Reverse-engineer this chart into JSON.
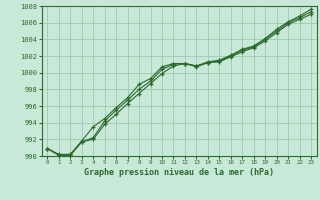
{
  "x": [
    0,
    1,
    2,
    3,
    4,
    5,
    6,
    7,
    8,
    9,
    10,
    11,
    12,
    13,
    14,
    15,
    16,
    17,
    18,
    19,
    20,
    21,
    22,
    23
  ],
  "line1": [
    990.9,
    990.2,
    990.2,
    991.8,
    993.5,
    994.5,
    995.8,
    997.0,
    998.6,
    999.3,
    1000.7,
    1001.1,
    1001.1,
    1000.8,
    1001.3,
    1001.5,
    1002.1,
    1002.8,
    1003.2,
    1004.1,
    1005.2,
    1006.1,
    1006.8,
    1007.6
  ],
  "line2": [
    990.9,
    990.1,
    990.1,
    991.7,
    992.0,
    993.8,
    995.0,
    996.3,
    997.5,
    998.7,
    999.9,
    1000.8,
    1001.1,
    1000.7,
    1001.2,
    1001.3,
    1001.9,
    1002.5,
    1003.0,
    1003.8,
    1004.8,
    1005.8,
    1006.4,
    1007.0
  ],
  "line3": [
    990.9,
    990.1,
    990.1,
    991.7,
    992.2,
    994.2,
    995.5,
    996.7,
    998.0,
    999.0,
    1000.4,
    1001.0,
    1001.1,
    1000.8,
    1001.2,
    1001.4,
    1002.0,
    1002.7,
    1003.1,
    1004.0,
    1005.0,
    1006.0,
    1006.6,
    1007.3
  ],
  "line_color": "#2d6a2d",
  "bg_color": "#c8e8d8",
  "grid_color": "#a0c8b0",
  "xlabel": "Graphe pression niveau de la mer (hPa)",
  "ylim": [
    990,
    1008
  ],
  "xlim": [
    -0.5,
    23.5
  ],
  "yticks": [
    990,
    992,
    994,
    996,
    998,
    1000,
    1002,
    1004,
    1006,
    1008
  ],
  "xticks": [
    0,
    1,
    2,
    3,
    4,
    5,
    6,
    7,
    8,
    9,
    10,
    11,
    12,
    13,
    14,
    15,
    16,
    17,
    18,
    19,
    20,
    21,
    22,
    23
  ]
}
